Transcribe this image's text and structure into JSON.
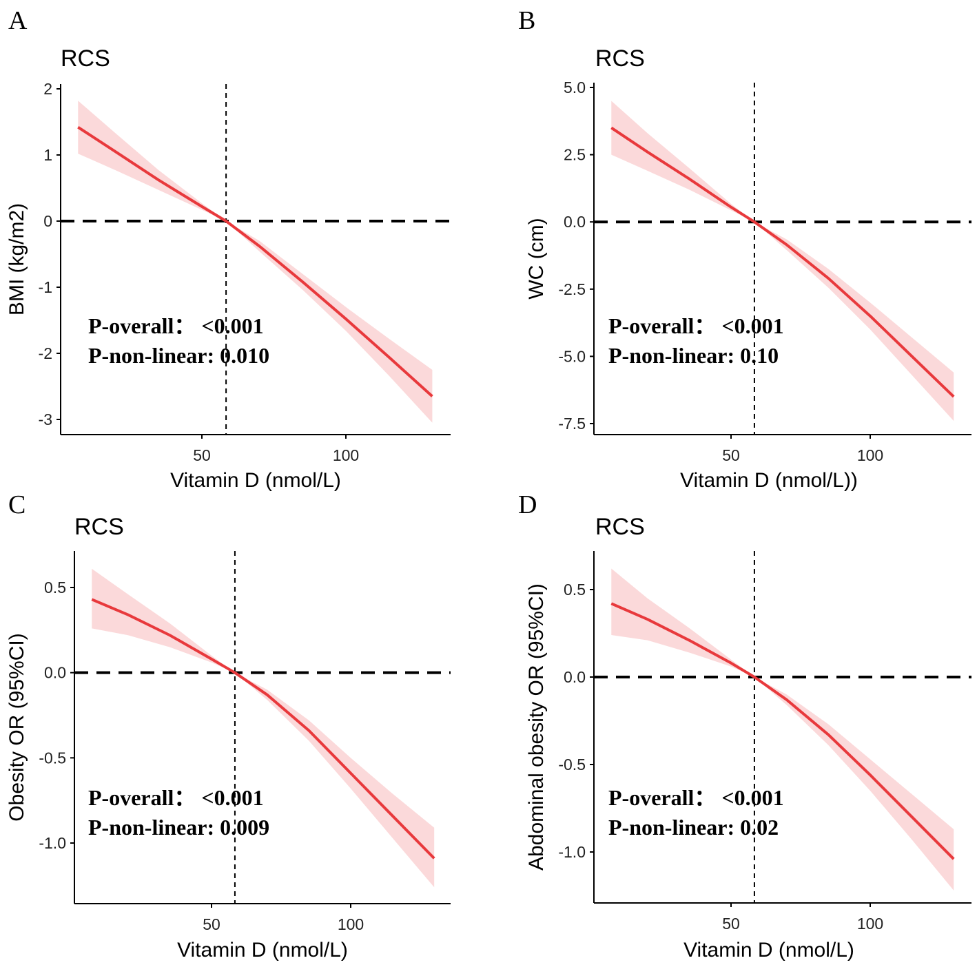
{
  "chart_data": [
    {
      "type": "line",
      "panel_letter": "A",
      "title": "RCS",
      "xlabel": "Vitamin D (nmol/L)",
      "ylabel": "BMI (kg/m2)",
      "xticks": [
        50,
        100
      ],
      "yticks": [
        2,
        1,
        0,
        -1,
        -2,
        -3
      ],
      "ytick_labels": [
        "2",
        "1",
        "0",
        "-1",
        "-2",
        "-3"
      ],
      "xlim": [
        0,
        138
      ],
      "ylim": [
        -3.2,
        2.07
      ],
      "reference_x": 58.4,
      "reference_y": 0,
      "x": [
        7,
        20,
        35,
        50,
        58.4,
        70,
        85,
        100,
        115,
        130
      ],
      "fit": [
        1.42,
        1.05,
        0.62,
        0.22,
        0,
        -0.38,
        -0.92,
        -1.48,
        -2.06,
        -2.65
      ],
      "lower": [
        1.02,
        0.77,
        0.47,
        0.17,
        0,
        -0.46,
        -1.04,
        -1.66,
        -2.34,
        -3.05
      ],
      "upper": [
        1.82,
        1.33,
        0.77,
        0.27,
        0,
        -0.3,
        -0.8,
        -1.3,
        -1.78,
        -2.25
      ],
      "annotations": [
        "P-overall： <0.001",
        "P-non-linear: 0.010"
      ]
    },
    {
      "type": "line",
      "panel_letter": "B",
      "title": "RCS",
      "xlabel": "Vitamin D (nmol/L))",
      "ylabel": "WC (cm)",
      "xticks": [
        50,
        100
      ],
      "yticks": [
        5,
        2.5,
        0,
        -2.5,
        -5,
        -7.5
      ],
      "ytick_labels": [
        "5.0",
        "2.5",
        "0.0",
        "-2.5",
        "-5.0",
        "-7.5"
      ],
      "xlim": [
        0,
        136
      ],
      "ylim": [
        -8,
        5.2
      ],
      "reference_x": 58.4,
      "reference_y": 0,
      "x": [
        7,
        20,
        35,
        50,
        58.4,
        70,
        85,
        100,
        115,
        130
      ],
      "fit": [
        3.5,
        2.6,
        1.6,
        0.55,
        0,
        -0.85,
        -2.1,
        -3.5,
        -5.0,
        -6.5
      ],
      "lower": [
        2.5,
        1.9,
        1.2,
        0.43,
        0,
        -1.05,
        -2.45,
        -4.0,
        -5.7,
        -7.4
      ],
      "upper": [
        4.5,
        3.3,
        2.0,
        0.67,
        0,
        -0.65,
        -1.75,
        -3.0,
        -4.3,
        -5.6
      ],
      "annotations": [
        "P-overall： <0.001",
        "P-non-linear: 0.10"
      ]
    },
    {
      "type": "line",
      "panel_letter": "C",
      "title": "RCS",
      "xlabel": "Vitamin D (nmol/L)",
      "ylabel": "Obesity OR (95%CI)",
      "xticks": [
        50,
        100
      ],
      "yticks": [
        0.5,
        0,
        -0.5,
        -1
      ],
      "ytick_labels": [
        "0.5",
        "0.0",
        "-0.5",
        "-1.0"
      ],
      "xlim": [
        0,
        136
      ],
      "ylim": [
        -1.36,
        0.71
      ],
      "reference_x": 58.4,
      "reference_y": 0,
      "x": [
        7,
        20,
        35,
        50,
        58.4,
        70,
        85,
        100,
        115,
        130
      ],
      "fit": [
        0.43,
        0.34,
        0.22,
        0.08,
        0,
        -0.13,
        -0.34,
        -0.59,
        -0.84,
        -1.09
      ],
      "lower": [
        0.26,
        0.22,
        0.15,
        0.06,
        0,
        -0.16,
        -0.4,
        -0.68,
        -0.97,
        -1.26
      ],
      "upper": [
        0.61,
        0.46,
        0.29,
        0.1,
        0,
        -0.1,
        -0.28,
        -0.5,
        -0.71,
        -0.91
      ],
      "annotations": [
        "P-overall： <0.001",
        "P-non-linear: 0.009"
      ]
    },
    {
      "type": "line",
      "panel_letter": "D",
      "title": "RCS",
      "xlabel": "Vitamin D (nmol/L)",
      "ylabel": "Abdominal obesity OR (95%CI)",
      "xticks": [
        50,
        100
      ],
      "yticks": [
        0.5,
        0,
        -0.5,
        -1
      ],
      "ytick_labels": [
        "0.5",
        "0.0",
        "-0.5",
        "-1.0"
      ],
      "xlim": [
        0,
        136
      ],
      "ylim": [
        -1.29,
        0.71
      ],
      "reference_x": 58.4,
      "reference_y": 0,
      "x": [
        7,
        20,
        35,
        50,
        58.4,
        70,
        85,
        100,
        115,
        130
      ],
      "fit": [
        0.42,
        0.33,
        0.21,
        0.08,
        0,
        -0.13,
        -0.33,
        -0.56,
        -0.8,
        -1.04
      ],
      "lower": [
        0.24,
        0.21,
        0.14,
        0.06,
        0,
        -0.16,
        -0.39,
        -0.65,
        -0.93,
        -1.22
      ],
      "upper": [
        0.62,
        0.45,
        0.28,
        0.1,
        0,
        -0.1,
        -0.27,
        -0.47,
        -0.67,
        -0.87
      ],
      "annotations": [
        "P-overall： <0.001",
        "P-non-linear: 0.02"
      ]
    }
  ],
  "colors": {
    "line": "#e8393c",
    "band": "#fbd9da",
    "axis": "#000000",
    "text": "#222222"
  }
}
